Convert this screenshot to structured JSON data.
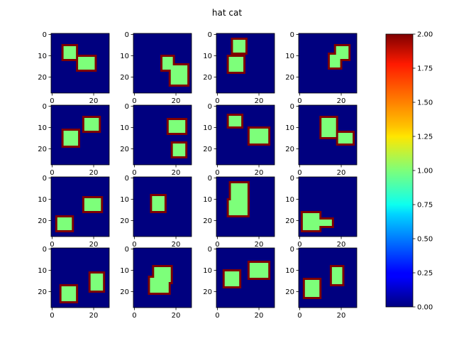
{
  "chart_data": {
    "type": "heatmap",
    "title": "hat cat",
    "grid_shape": [
      4,
      4
    ],
    "image_size": 28,
    "colormap": "jet",
    "colorbar": {
      "vmin": 0.0,
      "vmax": 2.0,
      "ticks": [
        "0.00",
        "0.25",
        "0.50",
        "0.75",
        "1.00",
        "1.25",
        "1.50",
        "1.75",
        "2.00"
      ],
      "tick_values": [
        0,
        0.25,
        0.5,
        0.75,
        1.0,
        1.25,
        1.5,
        1.75,
        2.0
      ]
    },
    "x_ticks": [
      "0",
      "20"
    ],
    "x_tick_values": [
      0,
      20
    ],
    "y_ticks": [
      "0",
      "10",
      "20"
    ],
    "y_tick_values": [
      0,
      10,
      20
    ],
    "value_legend": {
      "background": 0,
      "fill": 1,
      "border": 2
    },
    "panels": [
      {
        "rects": [
          [
            5,
            5,
            13,
            13
          ],
          [
            10,
            12,
            18,
            22
          ]
        ]
      },
      {
        "rects": [
          [
            10,
            13,
            18,
            20
          ],
          [
            14,
            17,
            25,
            27
          ]
        ]
      },
      {
        "rects": [
          [
            2,
            7,
            10,
            15
          ],
          [
            10,
            5,
            19,
            14
          ]
        ]
      },
      {
        "rects": [
          [
            5,
            17,
            13,
            25
          ],
          [
            9,
            14,
            17,
            21
          ]
        ]
      },
      {
        "rects": [
          [
            11,
            5,
            20,
            14
          ],
          [
            5,
            15,
            13,
            24
          ]
        ]
      },
      {
        "rects": [
          [
            6,
            16,
            14,
            26
          ],
          [
            17,
            18,
            25,
            26
          ]
        ]
      },
      {
        "rects": [
          [
            4,
            5,
            11,
            13
          ],
          [
            10,
            15,
            19,
            26
          ]
        ]
      },
      {
        "rects": [
          [
            5,
            10,
            16,
            19
          ],
          [
            12,
            18,
            19,
            27
          ]
        ]
      },
      {
        "rects": [
          [
            18,
            2,
            26,
            11
          ],
          [
            9,
            15,
            17,
            25
          ]
        ]
      },
      {
        "rects": [
          [
            8,
            8,
            17,
            16
          ]
        ]
      },
      {
        "rects": [
          [
            2,
            6,
            12,
            16
          ],
          [
            10,
            5,
            19,
            16
          ]
        ]
      },
      {
        "rects": [
          [
            16,
            1,
            26,
            11
          ],
          [
            19,
            6,
            24,
            17
          ]
        ]
      },
      {
        "rects": [
          [
            17,
            4,
            26,
            13
          ],
          [
            11,
            18,
            21,
            26
          ]
        ]
      },
      {
        "rects": [
          [
            8,
            9,
            17,
            19
          ],
          [
            13,
            7,
            22,
            18
          ]
        ]
      },
      {
        "rects": [
          [
            10,
            3,
            19,
            12
          ],
          [
            6,
            15,
            15,
            26
          ]
        ]
      },
      {
        "rects": [
          [
            14,
            2,
            24,
            11
          ],
          [
            8,
            15,
            18,
            22
          ]
        ]
      }
    ]
  }
}
